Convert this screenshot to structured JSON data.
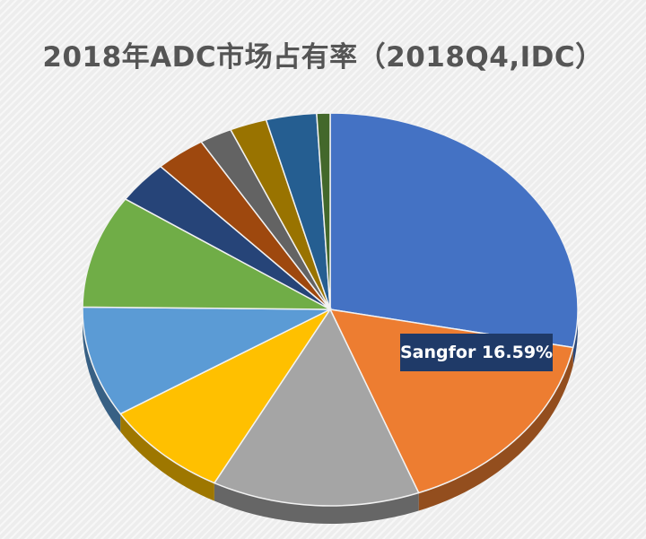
{
  "chart_data": {
    "type": "pie",
    "title": "2018年ADC市场占有率（2018Q4,IDC）",
    "style": "3d",
    "slices": [
      {
        "value": 29.0,
        "color": "#4472c4"
      },
      {
        "value": 16.59,
        "color": "#ed7d31",
        "label": "Sangfor 16.59%"
      },
      {
        "value": 14.0,
        "color": "#a5a5a5"
      },
      {
        "value": 8.6,
        "color": "#ffc000"
      },
      {
        "value": 9.4,
        "color": "#5b9bd5"
      },
      {
        "value": 9.6,
        "color": "#70ad47"
      },
      {
        "value": 3.6,
        "color": "#264478"
      },
      {
        "value": 3.4,
        "color": "#9e480e"
      },
      {
        "value": 2.2,
        "color": "#636363"
      },
      {
        "value": 2.5,
        "color": "#997300"
      },
      {
        "value": 3.4,
        "color": "#255e91"
      },
      {
        "value": 0.9,
        "color": "#43682b"
      }
    ]
  }
}
